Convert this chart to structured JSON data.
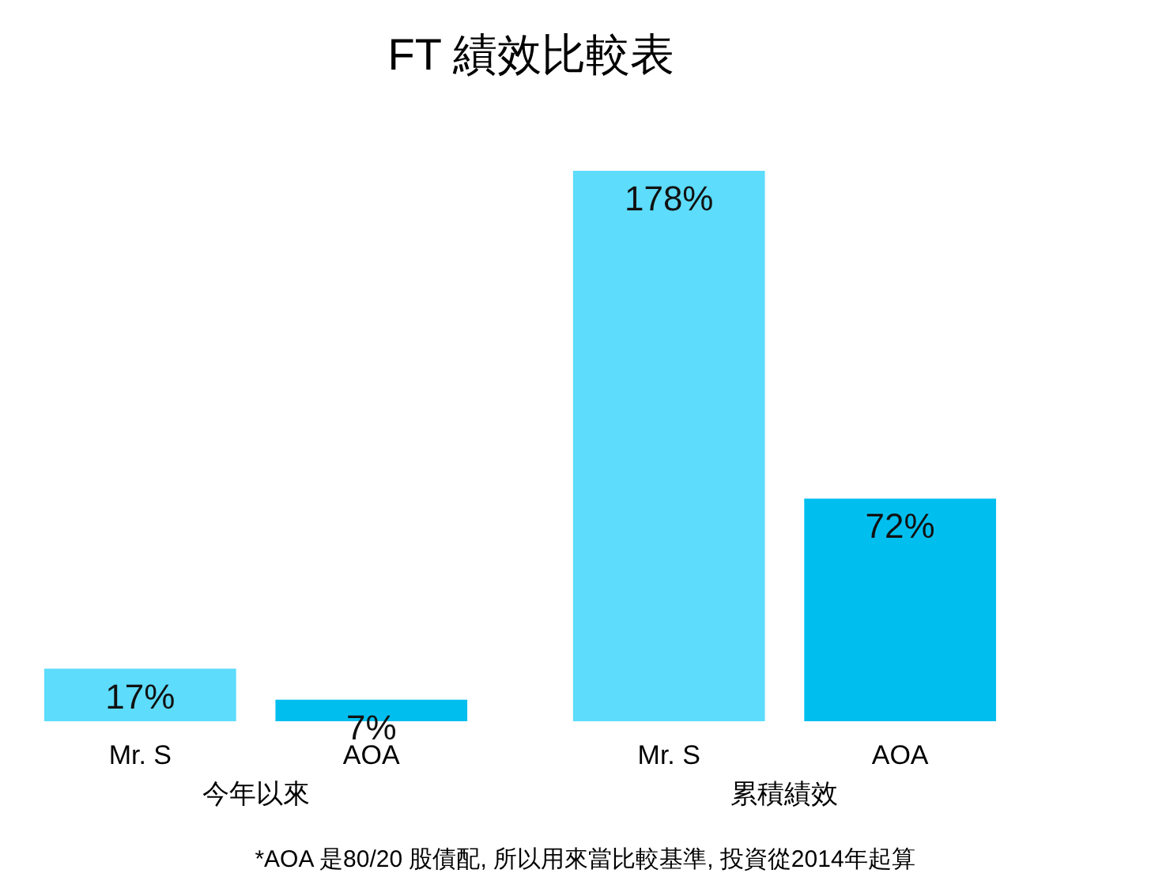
{
  "chart_data": {
    "type": "bar",
    "title": "FT 績效比較表",
    "categories": [
      "今年以來",
      "累積績效"
    ],
    "series": [
      {
        "name": "Mr. S",
        "color": "#5ddcfc",
        "values": [
          17,
          178
        ],
        "value_labels": [
          "17%",
          "178%"
        ]
      },
      {
        "name": "AOA",
        "color": "#00bfef",
        "values": [
          7,
          72
        ],
        "value_labels": [
          "7%",
          "72%"
        ]
      }
    ],
    "legend": false,
    "grid": false,
    "annotations": [
      "*AOA 是80/20 股債配, 所以用來當比較基準, 投資從2014年起算"
    ]
  }
}
